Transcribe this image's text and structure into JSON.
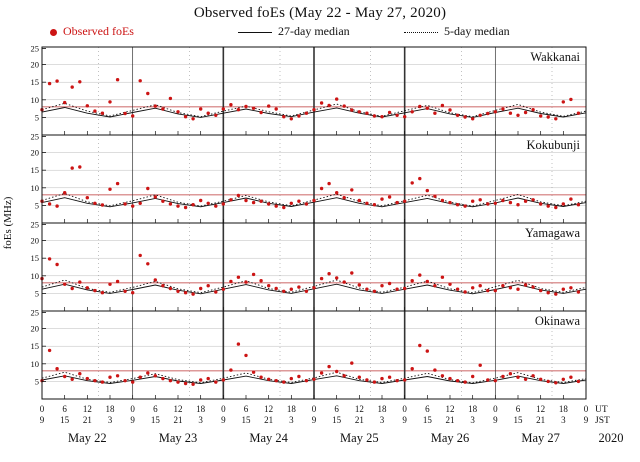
{
  "title": "Observed foEs (May 22 - May 27, 2020)",
  "legend": {
    "observed": "Observed foEs",
    "median27": "27-day median",
    "median5": "5-day median"
  },
  "ylabel": "foEs (MHz)",
  "colors": {
    "observed": "#cc1414",
    "median": "#111111",
    "threshold": "#bb3333",
    "grid": "#bbbbbb",
    "day_boundary": "#333333",
    "dotted_vertical": "#999999"
  },
  "axis": {
    "hours_total": 144,
    "ylim": [
      0,
      25
    ],
    "yticks": [
      5,
      10,
      15,
      20,
      25
    ],
    "day_hours": 24,
    "ut_ticks": [
      "0",
      "6",
      "12",
      "18"
    ],
    "jst_ticks": [
      "9",
      "15",
      "21",
      "3"
    ],
    "end_ut": "0",
    "end_jst": "9",
    "ut_label": "UT",
    "jst_label": "JST",
    "days": [
      "May 22",
      "May 23",
      "May 24",
      "May 25",
      "May 26",
      "May 27"
    ],
    "year": "2020",
    "threshold_mhz": 8
  },
  "chart_data": [
    {
      "type": "scatter",
      "station": "Wakkanai",
      "t_start": 0,
      "t_step": 2,
      "observed": [
        7.2,
        14.6,
        15.3,
        9.2,
        13.6,
        15.1,
        8.3,
        6.8,
        6.2,
        9.4,
        15.7,
        6.1,
        5.4,
        15.4,
        11.8,
        8.2,
        7.4,
        10.4,
        6.6,
        5.2,
        4.6,
        7.4,
        6.2,
        5.6,
        7.4,
        8.6,
        7.2,
        8.1,
        7.6,
        6.4,
        8.2,
        7.4,
        5.2,
        4.6,
        5.4,
        6.2,
        7.2,
        9.1,
        8.4,
        10.2,
        8.2,
        7.1,
        6.6,
        6.2,
        5.4,
        5.2,
        6.4,
        5.6,
        5.2,
        6.6,
        8.1,
        7.6,
        6.2,
        8.4,
        7.1,
        5.6,
        5.1,
        4.6,
        5.6,
        6.1,
        6.6,
        7.4,
        6.2,
        5.6,
        6.4,
        7.2,
        5.4,
        5.1,
        4.6,
        9.4,
        10.1,
        6.2
      ],
      "median27": {
        "t_step": 6,
        "values": [
          6.5,
          7.8,
          6.2,
          5.1,
          6.4,
          7.6,
          6.0,
          5.0,
          6.2,
          7.4,
          6.1,
          5.2,
          6.5,
          7.7,
          6.2,
          5.1,
          6.3,
          7.5,
          6.0,
          5.0,
          6.4,
          7.6,
          6.1,
          5.1,
          6.3
        ]
      },
      "median5": {
        "t_step": 6,
        "values": [
          7.2,
          9.0,
          6.8,
          5.4,
          7.0,
          8.6,
          6.4,
          5.2,
          6.8,
          8.2,
          6.6,
          5.4,
          7.1,
          8.8,
          6.6,
          5.3,
          6.9,
          8.4,
          6.3,
          5.2,
          7.0,
          8.7,
          6.5,
          5.3,
          6.8
        ]
      }
    },
    {
      "type": "scatter",
      "station": "Kokubunji",
      "t_start": 0,
      "t_step": 2,
      "observed": [
        6.2,
        5.4,
        4.8,
        8.6,
        15.6,
        15.9,
        7.2,
        5.6,
        5.1,
        9.6,
        11.2,
        5.4,
        4.8,
        5.6,
        9.8,
        7.4,
        6.2,
        5.4,
        4.8,
        4.4,
        5.2,
        6.4,
        5.6,
        4.8,
        5.4,
        6.6,
        7.8,
        6.4,
        5.8,
        6.2,
        5.4,
        4.8,
        4.4,
        5.6,
        6.2,
        5.4,
        6.4,
        9.8,
        11.2,
        8.6,
        7.2,
        9.4,
        6.4,
        5.6,
        5.2,
        6.8,
        7.4,
        5.8,
        6.2,
        11.4,
        12.6,
        9.2,
        7.6,
        6.4,
        5.8,
        5.2,
        4.8,
        6.2,
        6.6,
        5.4,
        5.6,
        6.4,
        5.8,
        5.2,
        6.2,
        6.6,
        5.4,
        4.8,
        4.4,
        5.4,
        6.8,
        5.2
      ],
      "median27": {
        "t_step": 6,
        "values": [
          5.8,
          7.2,
          5.6,
          4.6,
          5.7,
          7.0,
          5.5,
          4.6,
          5.8,
          7.1,
          5.6,
          4.7,
          5.9,
          7.2,
          5.6,
          4.6,
          5.8,
          7.0,
          5.5,
          4.6,
          5.7,
          7.1,
          5.6,
          4.7,
          5.8
        ]
      },
      "median5": {
        "t_step": 6,
        "values": [
          6.4,
          8.4,
          6.0,
          4.9,
          6.3,
          8.0,
          5.9,
          4.8,
          6.2,
          7.8,
          6.0,
          4.9,
          6.5,
          8.2,
          6.1,
          4.9,
          6.3,
          7.9,
          5.9,
          4.8,
          6.4,
          8.1,
          6.0,
          4.9,
          6.2
        ]
      }
    },
    {
      "type": "scatter",
      "station": "Yamagawa",
      "t_start": 0,
      "t_step": 2,
      "observed": [
        9.2,
        14.8,
        13.2,
        7.6,
        6.4,
        8.2,
        6.6,
        5.8,
        5.2,
        7.6,
        8.4,
        5.6,
        5.2,
        15.8,
        13.4,
        8.8,
        7.2,
        6.4,
        5.6,
        5.2,
        4.8,
        6.4,
        7.2,
        5.4,
        6.2,
        8.4,
        9.6,
        8.2,
        10.4,
        8.6,
        7.2,
        6.4,
        5.6,
        6.2,
        6.8,
        5.6,
        6.6,
        9.2,
        10.6,
        9.4,
        8.2,
        10.8,
        7.4,
        6.2,
        5.6,
        7.2,
        7.8,
        6.2,
        6.4,
        8.6,
        10.2,
        8.4,
        7.2,
        9.6,
        7.6,
        6.2,
        5.4,
        6.6,
        7.2,
        5.8,
        5.8,
        7.2,
        6.6,
        6.2,
        7.4,
        6.8,
        5.8,
        5.2,
        4.8,
        6.2,
        6.6,
        5.4
      ],
      "median27": {
        "t_step": 6,
        "values": [
          6.2,
          7.6,
          6.0,
          5.0,
          6.1,
          7.4,
          5.9,
          4.9,
          6.2,
          7.5,
          6.0,
          5.0,
          6.3,
          7.6,
          6.0,
          5.0,
          6.2,
          7.4,
          5.9,
          4.9,
          6.1,
          7.5,
          6.0,
          5.0,
          6.2
        ]
      },
      "median5": {
        "t_step": 6,
        "values": [
          6.8,
          8.8,
          6.4,
          5.3,
          6.7,
          8.4,
          6.3,
          5.2,
          6.8,
          8.6,
          6.4,
          5.3,
          7.0,
          8.8,
          6.5,
          5.3,
          6.8,
          8.5,
          6.3,
          5.2,
          6.9,
          8.7,
          6.4,
          5.3,
          6.7
        ]
      }
    },
    {
      "type": "scatter",
      "station": "Okinawa",
      "t_start": 0,
      "t_step": 2,
      "observed": [
        5.2,
        13.8,
        8.6,
        6.4,
        5.6,
        7.2,
        5.8,
        5.2,
        4.8,
        6.2,
        6.6,
        5.2,
        4.8,
        6.2,
        7.4,
        6.6,
        5.8,
        5.2,
        4.8,
        4.4,
        4.2,
        5.4,
        5.8,
        4.8,
        5.4,
        8.2,
        15.6,
        12.4,
        7.6,
        6.2,
        5.6,
        5.2,
        4.8,
        5.8,
        6.4,
        5.2,
        5.6,
        7.4,
        9.2,
        7.8,
        6.6,
        10.2,
        6.2,
        5.4,
        4.8,
        5.8,
        6.2,
        5.2,
        5.4,
        8.6,
        15.2,
        13.6,
        8.2,
        6.6,
        5.8,
        5.2,
        4.8,
        6.4,
        9.6,
        5.4,
        5.2,
        6.4,
        7.2,
        6.2,
        5.6,
        6.6,
        5.6,
        5.0,
        4.6,
        5.6,
        6.2,
        5.0
      ],
      "median27": {
        "t_step": 6,
        "values": [
          5.4,
          6.6,
          5.2,
          4.4,
          5.3,
          6.4,
          5.1,
          4.4,
          5.4,
          6.5,
          5.2,
          4.4,
          5.5,
          6.6,
          5.2,
          4.4,
          5.4,
          6.4,
          5.1,
          4.4,
          5.3,
          6.5,
          5.2,
          4.4,
          5.4
        ]
      },
      "median5": {
        "t_step": 6,
        "values": [
          5.9,
          7.6,
          5.6,
          4.7,
          5.8,
          7.2,
          5.5,
          4.6,
          5.9,
          7.4,
          5.6,
          4.7,
          6.0,
          7.6,
          5.6,
          4.7,
          5.9,
          7.3,
          5.5,
          4.6,
          5.9,
          7.5,
          5.6,
          4.7,
          5.8
        ]
      }
    }
  ]
}
